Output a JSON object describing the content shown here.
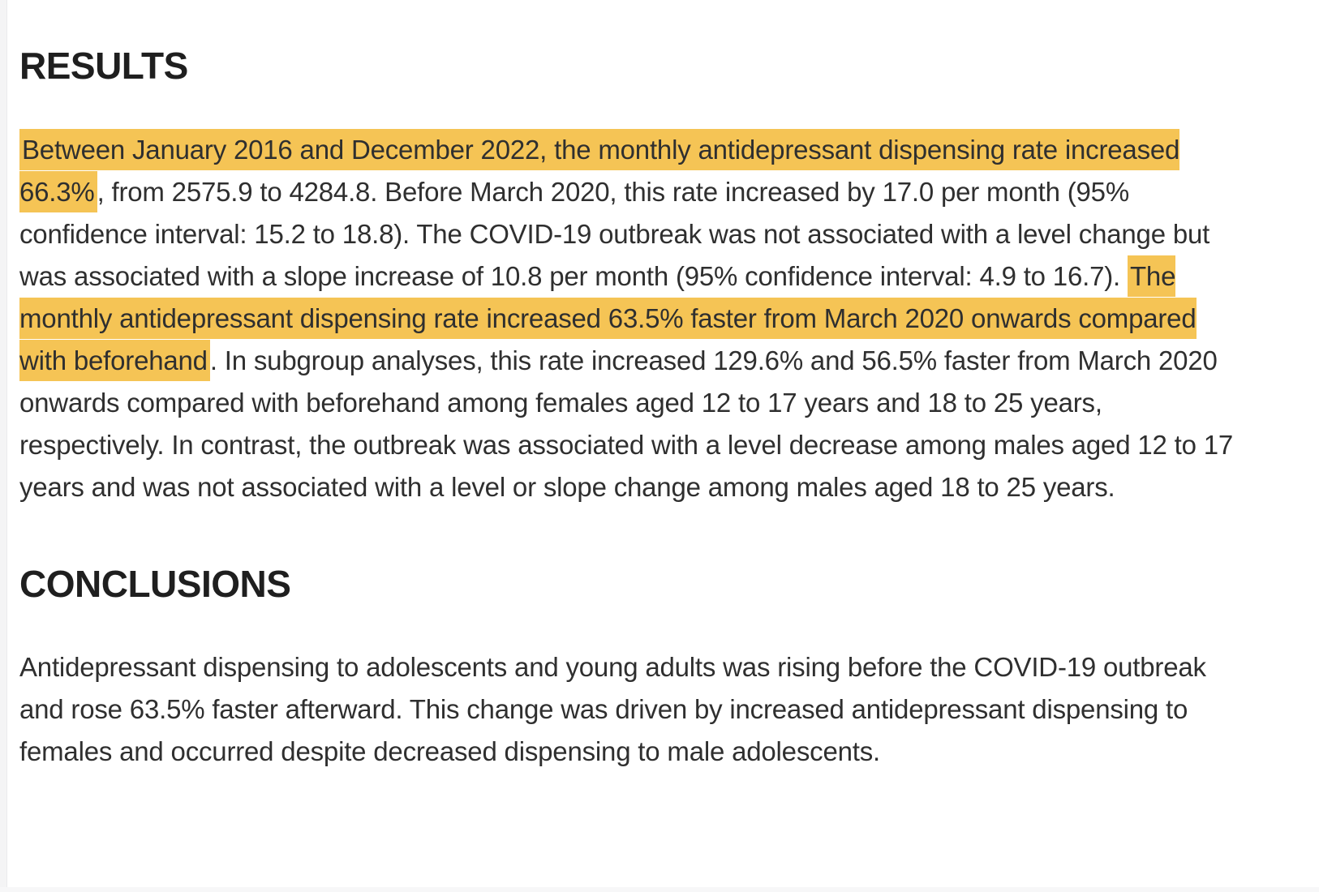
{
  "page": {
    "background": "#ffffff",
    "highlight_color": "#f5c455",
    "text_color": "#2f2f2f",
    "heading_color": "#1f1f1f"
  },
  "sections": [
    {
      "heading": "RESULTS",
      "paragraph_segments": [
        {
          "text": "Between January 2016 and December 2022, the monthly antidepressant dispensing rate increased 66.3%",
          "highlight": true
        },
        {
          "text": ", from 2575.9 to 4284.8. Before March 2020, this rate increased by 17.0 per month (95% confidence interval: 15.2 to 18.8). The COVID-19 outbreak was not associated with a level change but was associated with a slope increase of 10.8 per month (95% confidence interval: 4.9 to 16.7). ",
          "highlight": false
        },
        {
          "text": "The monthly antidepressant dispensing rate increased 63.5% faster from March 2020 onwards compared with beforehand",
          "highlight": true
        },
        {
          "text": ". In subgroup analyses, this rate increased 129.6% and 56.5% faster from March 2020 onwards compared with beforehand among females aged 12 to 17 years and 18 to 25 years, respectively. In contrast, the outbreak was associated with a level decrease among males aged 12 to 17 years and was not associated with a level or slope change among males aged 18 to 25 years.",
          "highlight": false
        }
      ]
    },
    {
      "heading": "CONCLUSIONS",
      "paragraph_segments": [
        {
          "text": "Antidepressant dispensing to adolescents and young adults was rising before the COVID-19 outbreak and rose 63.5% faster afterward. This change was driven by increased antidepressant dispensing to females and occurred despite decreased dispensing to male adolescents.",
          "highlight": false
        }
      ]
    }
  ]
}
